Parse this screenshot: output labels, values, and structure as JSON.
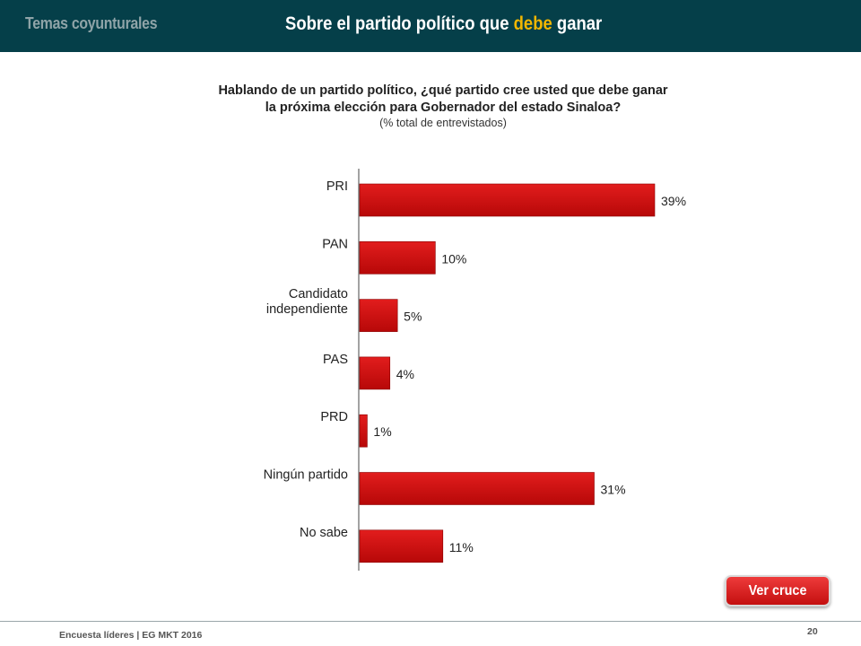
{
  "header": {
    "section": "Temas coyunturales",
    "title_before": "Sobre el partido político  que ",
    "title_highlight": "debe",
    "title_after": " ganar",
    "highlight_color": "#f2b600",
    "background_color": "#053f49"
  },
  "question": {
    "line1": "Hablando de un partido político, ¿qué partido cree usted que debe ganar",
    "line2": "la próxima elección para Gobernador del estado Sinaloa?",
    "subtitle": "(% total de entrevistados)"
  },
  "chart_data": {
    "type": "bar",
    "orientation": "horizontal",
    "categories": [
      "PRI",
      "PAN",
      "Candidato independiente",
      "PAS",
      "PRD",
      "Ningún partido",
      "No sabe"
    ],
    "category_lines": [
      [
        "PRI"
      ],
      [
        "PAN"
      ],
      [
        "Candidato",
        "independiente"
      ],
      [
        "PAS"
      ],
      [
        "PRD"
      ],
      [
        "Ningún partido"
      ],
      [
        "No sabe"
      ]
    ],
    "values": [
      39,
      10,
      5,
      4,
      1,
      31,
      11
    ],
    "value_labels": [
      "39%",
      "10%",
      "5%",
      "4%",
      "1%",
      "31%",
      "11%"
    ],
    "xlim": [
      0,
      39
    ],
    "bar_color": "#cc0a0a",
    "grid": false
  },
  "button": {
    "label": "Ver cruce"
  },
  "footer": {
    "text": "Encuesta líderes | EG MKT 2016",
    "page": "20"
  }
}
